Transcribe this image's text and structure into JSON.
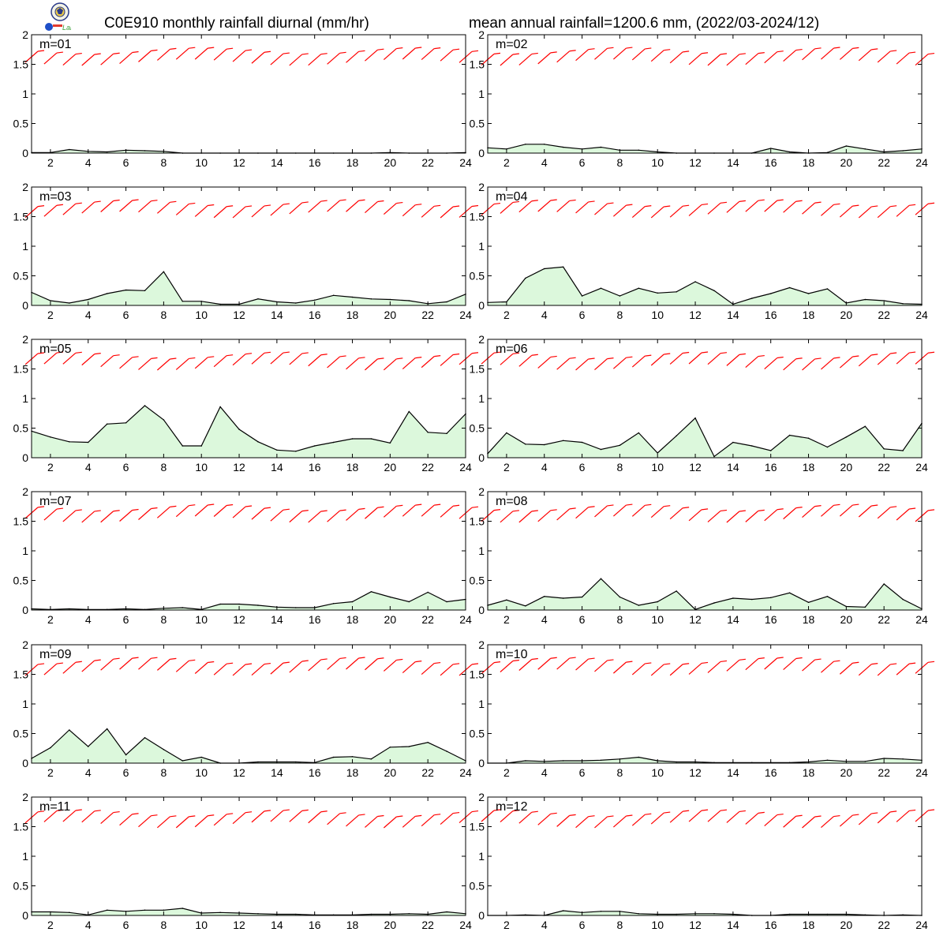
{
  "header": {
    "title_left": "C0E910 monthly rainfall diurnal (mm/hr)",
    "title_right": "mean annual rainfall=1200.6 mm, (2022/03-2024/12)",
    "logo_text": "Lab"
  },
  "colors": {
    "fill": "#dcf8dc",
    "line": "#000000",
    "barb": "#ff0000",
    "axis": "#000000"
  },
  "chart_data": {
    "type": "area",
    "xlim": [
      1,
      24
    ],
    "ylim": [
      0,
      2
    ],
    "x": [
      1,
      2,
      3,
      4,
      5,
      6,
      7,
      8,
      9,
      10,
      11,
      12,
      13,
      14,
      15,
      16,
      17,
      18,
      19,
      20,
      21,
      22,
      23,
      24
    ],
    "xticks": [
      "2",
      "4",
      "6",
      "8",
      "10",
      "12",
      "14",
      "16",
      "18",
      "20",
      "22",
      "24"
    ],
    "yticks": [
      "0",
      "0.5",
      "1",
      "1.5",
      "2"
    ],
    "grid": false,
    "overlay": "wind barbs (red) along upper part of each panel",
    "panels": [
      {
        "label": "m=01",
        "values": [
          0.01,
          0.01,
          0.06,
          0.03,
          0.02,
          0.05,
          0.04,
          0.03,
          0.0,
          0.0,
          0.0,
          0.0,
          0.0,
          0.0,
          0.0,
          0.0,
          0.0,
          0.0,
          0.0,
          0.01,
          0.0,
          0.0,
          0.0,
          0.01
        ]
      },
      {
        "label": "m=02",
        "values": [
          0.09,
          0.07,
          0.15,
          0.15,
          0.1,
          0.07,
          0.1,
          0.05,
          0.05,
          0.02,
          0.0,
          0.0,
          0.0,
          0.0,
          0.0,
          0.08,
          0.02,
          0.0,
          0.01,
          0.12,
          0.07,
          0.02,
          0.04,
          0.07
        ]
      },
      {
        "label": "m=03",
        "values": [
          0.22,
          0.08,
          0.04,
          0.1,
          0.2,
          0.26,
          0.25,
          0.57,
          0.07,
          0.07,
          0.02,
          0.02,
          0.11,
          0.06,
          0.04,
          0.09,
          0.17,
          0.14,
          0.11,
          0.1,
          0.08,
          0.03,
          0.06,
          0.19
        ]
      },
      {
        "label": "m=04",
        "values": [
          0.05,
          0.06,
          0.46,
          0.62,
          0.65,
          0.16,
          0.29,
          0.16,
          0.29,
          0.21,
          0.23,
          0.4,
          0.25,
          0.02,
          0.12,
          0.2,
          0.3,
          0.2,
          0.28,
          0.04,
          0.1,
          0.08,
          0.03,
          0.02
        ]
      },
      {
        "label": "m=05",
        "values": [
          0.45,
          0.35,
          0.27,
          0.26,
          0.57,
          0.59,
          0.88,
          0.64,
          0.2,
          0.2,
          0.86,
          0.48,
          0.27,
          0.13,
          0.11,
          0.2,
          0.26,
          0.32,
          0.32,
          0.25,
          0.78,
          0.43,
          0.41,
          0.74
        ]
      },
      {
        "label": "m=06",
        "values": [
          0.07,
          0.42,
          0.23,
          0.22,
          0.29,
          0.26,
          0.14,
          0.21,
          0.42,
          0.08,
          0.37,
          0.67,
          0.02,
          0.26,
          0.2,
          0.12,
          0.38,
          0.33,
          0.18,
          0.35,
          0.53,
          0.15,
          0.12,
          0.58
        ]
      },
      {
        "label": "m=07",
        "values": [
          0.02,
          0.01,
          0.02,
          0.01,
          0.01,
          0.02,
          0.01,
          0.03,
          0.04,
          0.01,
          0.1,
          0.1,
          0.08,
          0.05,
          0.04,
          0.04,
          0.11,
          0.14,
          0.31,
          0.22,
          0.14,
          0.3,
          0.14,
          0.18
        ]
      },
      {
        "label": "m=08",
        "values": [
          0.08,
          0.17,
          0.07,
          0.23,
          0.2,
          0.22,
          0.53,
          0.22,
          0.08,
          0.14,
          0.32,
          0.01,
          0.12,
          0.2,
          0.18,
          0.21,
          0.29,
          0.13,
          0.23,
          0.06,
          0.05,
          0.44,
          0.18,
          0.02
        ]
      },
      {
        "label": "m=09",
        "values": [
          0.08,
          0.26,
          0.56,
          0.28,
          0.58,
          0.14,
          0.43,
          0.23,
          0.04,
          0.1,
          0.0,
          0.0,
          0.02,
          0.02,
          0.02,
          0.01,
          0.1,
          0.11,
          0.07,
          0.27,
          0.28,
          0.35,
          0.2,
          0.04
        ]
      },
      {
        "label": "m=10",
        "values": [
          0.0,
          0.0,
          0.04,
          0.03,
          0.04,
          0.04,
          0.05,
          0.07,
          0.1,
          0.04,
          0.02,
          0.02,
          0.01,
          0.01,
          0.01,
          0.01,
          0.01,
          0.02,
          0.05,
          0.03,
          0.03,
          0.08,
          0.07,
          0.05
        ]
      },
      {
        "label": "m=11",
        "values": [
          0.06,
          0.06,
          0.05,
          0.01,
          0.09,
          0.07,
          0.09,
          0.09,
          0.12,
          0.04,
          0.05,
          0.04,
          0.03,
          0.02,
          0.02,
          0.01,
          0.01,
          0.01,
          0.02,
          0.02,
          0.03,
          0.02,
          0.06,
          0.03
        ]
      },
      {
        "label": "m=12",
        "values": [
          0.0,
          0.0,
          0.01,
          0.0,
          0.08,
          0.05,
          0.07,
          0.07,
          0.03,
          0.02,
          0.02,
          0.03,
          0.03,
          0.02,
          0.0,
          0.0,
          0.02,
          0.02,
          0.02,
          0.02,
          0.01,
          0.0,
          0.01,
          0.0
        ]
      }
    ]
  }
}
